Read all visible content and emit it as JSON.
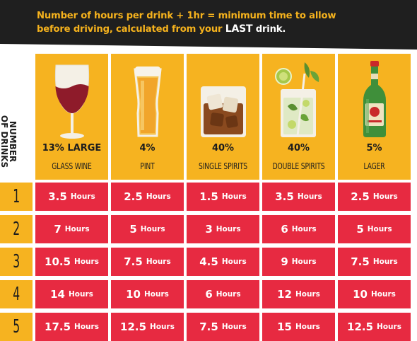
{
  "banner": {
    "line1": "Number of hours per drink + 1hr = minimum time to allow",
    "line2_pre": "before driving, calculated from your ",
    "line2_last": "LAST",
    "line2_post": " drink."
  },
  "side_label": {
    "line1": "NUMBER",
    "line2": "OF DRINKS"
  },
  "unit_label": "Hours",
  "drinks": [
    {
      "percent": "13% LARGE",
      "name": "GLASS WINE",
      "icon": "wine-glass-icon"
    },
    {
      "percent": "4%",
      "name": "PINT",
      "icon": "pint-glass-icon"
    },
    {
      "percent": "40%",
      "name": "SINGLE SPIRITS",
      "icon": "spirits-tumbler-icon"
    },
    {
      "percent": "40%",
      "name": "DOUBLE SPIRITS",
      "icon": "cocktail-glass-icon"
    },
    {
      "percent": "5%",
      "name": "LAGER",
      "icon": "beer-bottle-icon"
    }
  ],
  "rows": [
    {
      "drinks": "1",
      "hours": [
        "3.5",
        "2.5",
        "1.5",
        "3.5",
        "2.5"
      ]
    },
    {
      "drinks": "2",
      "hours": [
        "7",
        "5",
        "3",
        "6",
        "5"
      ]
    },
    {
      "drinks": "3",
      "hours": [
        "10.5",
        "7.5",
        "4.5",
        "9",
        "7.5"
      ]
    },
    {
      "drinks": "4",
      "hours": [
        "14",
        "10",
        "6",
        "12",
        "10"
      ]
    },
    {
      "drinks": "5",
      "hours": [
        "17.5",
        "12.5",
        "7.5",
        "15",
        "12.5"
      ]
    }
  ],
  "colors": {
    "header": "#f6b320",
    "cell": "#e72a41",
    "banner": "#1f1f1f",
    "banner_text": "#f5b21d"
  }
}
